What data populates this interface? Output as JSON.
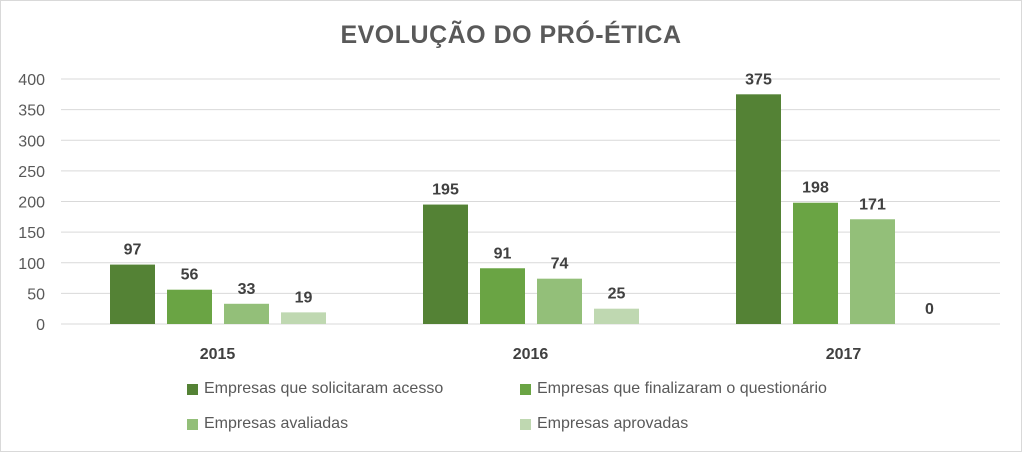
{
  "chart_data": {
    "type": "bar",
    "title": "EVOLUÇÃO DO PRÓ-ÉTICA",
    "categories": [
      "2015",
      "2016",
      "2017"
    ],
    "series": [
      {
        "name": "Empresas que solicitaram acesso",
        "values": [
          97,
          195,
          375
        ],
        "color": "#548235"
      },
      {
        "name": "Empresas que finalizaram o questionário",
        "values": [
          56,
          91,
          198
        ],
        "color": "#6aa444"
      },
      {
        "name": "Empresas avaliadas",
        "values": [
          33,
          74,
          171
        ],
        "color": "#93bf79"
      },
      {
        "name": "Empresas aprovadas",
        "values": [
          19,
          25,
          0
        ],
        "color": "#bfd8b1"
      }
    ],
    "ylim": [
      0,
      400
    ],
    "yticks": [
      0,
      50,
      100,
      150,
      200,
      250,
      300,
      350,
      400
    ],
    "grid": true,
    "legend": "bottom",
    "xlabel": "",
    "ylabel": ""
  }
}
